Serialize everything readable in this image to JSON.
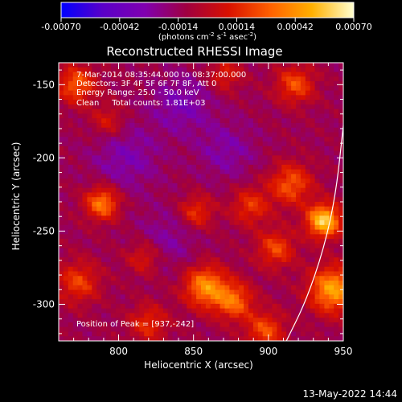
{
  "chart_data": {
    "type": "heatmap",
    "title": "Reconstructed RHESSI Image",
    "xlabel": "Heliocentric X (arcsec)",
    "ylabel": "Heliocentric Y (arcsec)",
    "xlim": [
      760,
      950
    ],
    "ylim": [
      -325,
      -135
    ],
    "x_ticks": [
      800,
      850,
      900,
      950
    ],
    "y_ticks": [
      -150,
      -200,
      -250,
      -300
    ],
    "colorbar": {
      "min": -0.0007,
      "max": 0.0007,
      "ticks": [
        "-0.00070",
        "-0.00042",
        "-0.00014",
        "0.00014",
        "0.00042",
        "0.00070"
      ],
      "units_text": "(photons cm",
      "units_exp1": "-2",
      "units_mid": " s",
      "units_exp2": "-1",
      "units_mid2": " asec",
      "units_exp3": "-2",
      "units_end": ")",
      "colormap": [
        "#0000ff",
        "#5a00c8",
        "#8000b0",
        "#a00040",
        "#d81000",
        "#ff6000",
        "#ffb000",
        "#ffffd0"
      ]
    },
    "annotations": [
      "7-Mar-2014 08:35:44.000 to 08:37:00.000",
      "Detectors: 3F 4F 5F 6F 7F 8F, Att 0",
      "Energy Range: 25.0 - 50.0 keV",
      "Clean     Total counts: 1.81E+03"
    ],
    "peak_label": "Position of Peak = [937,-242]",
    "peak": [
      937,
      -242
    ],
    "sources": [
      {
        "x": 937,
        "y": -243,
        "amp": 0.0007,
        "w": 8
      },
      {
        "x": 943,
        "y": -290,
        "amp": 0.00058,
        "w": 11
      },
      {
        "x": 858,
        "y": -288,
        "amp": 0.00052,
        "w": 10
      },
      {
        "x": 877,
        "y": -298,
        "amp": 0.00042,
        "w": 9
      },
      {
        "x": 789,
        "y": -231,
        "amp": 0.00048,
        "w": 8
      },
      {
        "x": 773,
        "y": -285,
        "amp": 0.00032,
        "w": 10
      },
      {
        "x": 772,
        "y": -150,
        "amp": 0.0004,
        "w": 9
      },
      {
        "x": 918,
        "y": -150,
        "amp": 0.00036,
        "w": 9
      },
      {
        "x": 915,
        "y": -218,
        "amp": 0.00038,
        "w": 10
      },
      {
        "x": 888,
        "y": -233,
        "amp": 0.0003,
        "w": 9
      },
      {
        "x": 905,
        "y": -262,
        "amp": 0.00034,
        "w": 9
      },
      {
        "x": 898,
        "y": -318,
        "amp": 0.00036,
        "w": 9
      },
      {
        "x": 820,
        "y": -313,
        "amp": 0.00028,
        "w": 9
      },
      {
        "x": 852,
        "y": -237,
        "amp": 0.0003,
        "w": 8
      },
      {
        "x": 817,
        "y": -268,
        "amp": 0.00024,
        "w": 8
      },
      {
        "x": 793,
        "y": -175,
        "amp": 0.00022,
        "w": 8
      },
      {
        "x": 871,
        "y": -143,
        "amp": 0.00024,
        "w": 8
      },
      {
        "x": 842,
        "y": -163,
        "amp": -0.0002,
        "w": 14
      },
      {
        "x": 805,
        "y": -200,
        "amp": -0.00018,
        "w": 16
      },
      {
        "x": 872,
        "y": -195,
        "amp": -0.00016,
        "w": 14
      },
      {
        "x": 833,
        "y": -255,
        "amp": -0.00014,
        "w": 14
      }
    ],
    "limb_curve": [
      [
        912,
        -325
      ],
      [
        925,
        -298
      ],
      [
        937,
        -262
      ],
      [
        945,
        -225
      ],
      [
        950,
        -178
      ]
    ]
  },
  "footer": {
    "timestamp": "13-May-2022 14:44"
  }
}
